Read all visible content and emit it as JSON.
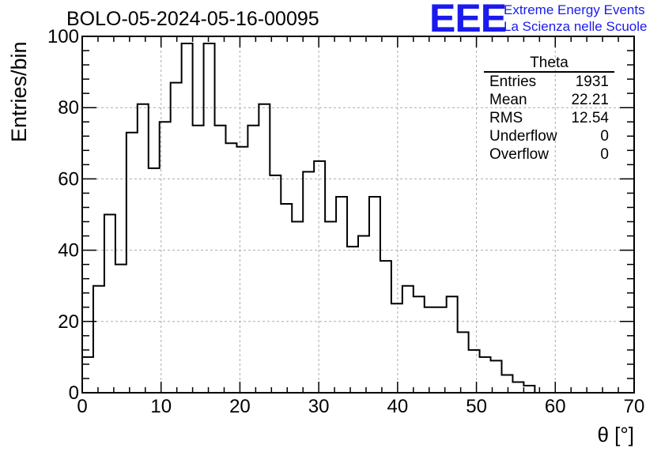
{
  "header": {
    "title": "BOLO-05-2024-05-16-00095",
    "logo_mark": "EEE",
    "logo_line1": "Extreme Energy Events",
    "logo_line2": "La Scienza nelle Scuole",
    "logo_color": "#1a1aee"
  },
  "stats_box": {
    "title": "Theta",
    "rows": [
      {
        "label": "Entries",
        "value": "1931"
      },
      {
        "label": "Mean",
        "value": "22.21"
      },
      {
        "label": "RMS",
        "value": "12.54"
      },
      {
        "label": "Underflow",
        "value": "0"
      },
      {
        "label": "Overflow",
        "value": "0"
      }
    ]
  },
  "chart_data": {
    "type": "bar",
    "style": "step-histogram",
    "title": "BOLO-05-2024-05-16-00095",
    "xlabel": "θ [°]",
    "ylabel": "Entries/bin",
    "bin_width": 1.4,
    "bin_edges_start": 0,
    "values": [
      10,
      30,
      50,
      36,
      73,
      81,
      63,
      76,
      87,
      98,
      75,
      98,
      75,
      70,
      69,
      75,
      81,
      61,
      53,
      48,
      62,
      65,
      48,
      55,
      41,
      44,
      55,
      37,
      25,
      30,
      27,
      24,
      24,
      27,
      17,
      12,
      10,
      9,
      5,
      3,
      2,
      0,
      0,
      0,
      0,
      0,
      0,
      0,
      0,
      0
    ],
    "xlim": [
      0,
      70
    ],
    "ylim": [
      0,
      100
    ],
    "x_ticks": [
      0,
      10,
      20,
      30,
      40,
      50,
      60,
      70
    ],
    "y_ticks": [
      0,
      20,
      40,
      60,
      80,
      100
    ],
    "grid": true,
    "line_color": "#000000",
    "grid_color": "#aaaaaa"
  }
}
